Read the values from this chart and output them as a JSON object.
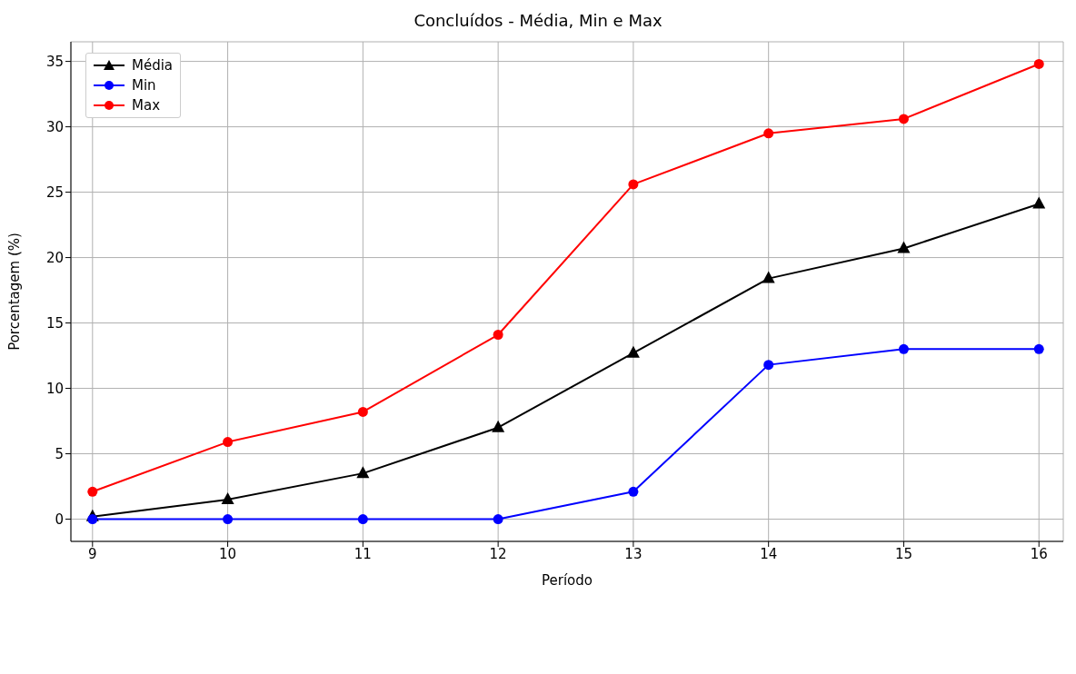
{
  "chart_data": {
    "type": "line",
    "title": "Concluídos - Média, Min e Max",
    "xlabel": "Período",
    "ylabel": "Porcentagem (%)",
    "x": [
      9,
      10,
      11,
      12,
      13,
      14,
      15,
      16
    ],
    "series": [
      {
        "name": "Média",
        "color": "#000000",
        "marker": "triangle",
        "values": [
          0.2,
          1.5,
          3.5,
          7.0,
          12.7,
          18.4,
          20.7,
          24.1
        ]
      },
      {
        "name": "Min",
        "color": "#0000ff",
        "marker": "circle",
        "values": [
          0,
          0,
          0,
          0,
          2.1,
          11.8,
          13.0,
          13.0
        ]
      },
      {
        "name": "Max",
        "color": "#ff0000",
        "marker": "circle",
        "values": [
          2.1,
          5.9,
          8.2,
          14.1,
          25.6,
          29.5,
          30.6,
          34.8
        ]
      }
    ],
    "xlim": [
      8.84,
      16.18
    ],
    "xticks": [
      9,
      10,
      11,
      12,
      13,
      14,
      15,
      16
    ],
    "ylim": [
      -1.7,
      36.5
    ],
    "yticks": [
      0,
      5,
      10,
      15,
      20,
      25,
      30,
      35
    ],
    "grid": true,
    "legend": "top left",
    "line_style": "solid"
  }
}
